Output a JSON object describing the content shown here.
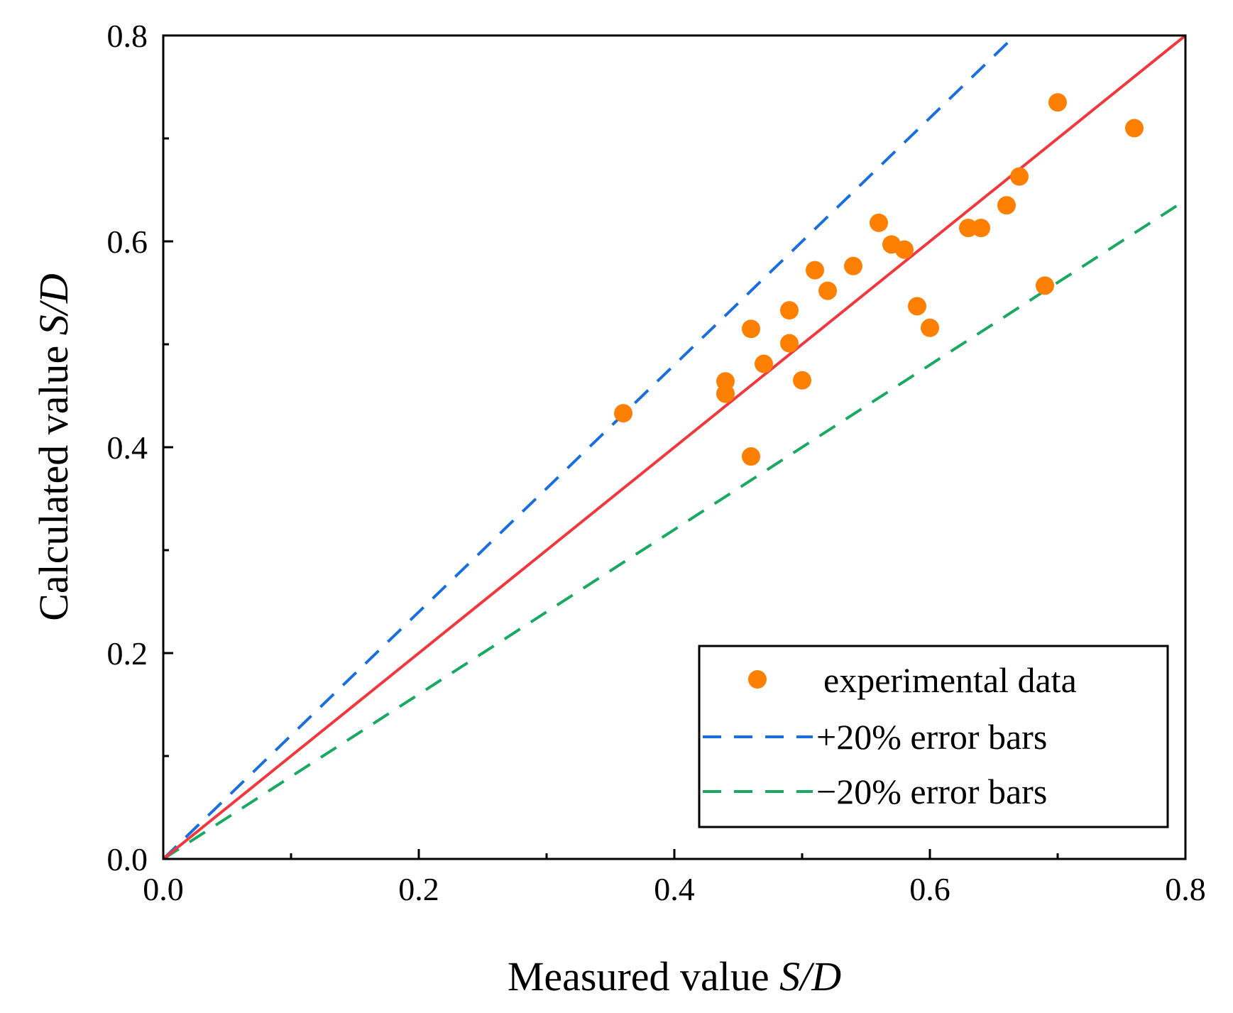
{
  "chart_data": {
    "type": "scatter",
    "title": "",
    "xlabel": {
      "prefix": "Measured value ",
      "var": "S/D"
    },
    "ylabel": {
      "prefix": "Calculated value ",
      "var": "S/D"
    },
    "xlim": [
      0,
      0.8
    ],
    "ylim": [
      0,
      0.8
    ],
    "major_ticks": [
      0.0,
      0.2,
      0.4,
      0.6,
      0.8
    ],
    "tick_labels": [
      "0.0",
      "0.2",
      "0.4",
      "0.6",
      "0.8"
    ],
    "minor_ticks": [
      0.1,
      0.3,
      0.5,
      0.7
    ],
    "grid": false,
    "legend_position": "bottom-right",
    "series": [
      {
        "name": "experimental data",
        "kind": "scatter",
        "color": "#ff8000",
        "points": [
          [
            0.36,
            0.433
          ],
          [
            0.44,
            0.464
          ],
          [
            0.44,
            0.452
          ],
          [
            0.46,
            0.515
          ],
          [
            0.46,
            0.391
          ],
          [
            0.47,
            0.481
          ],
          [
            0.49,
            0.533
          ],
          [
            0.49,
            0.501
          ],
          [
            0.5,
            0.465
          ],
          [
            0.51,
            0.572
          ],
          [
            0.52,
            0.552
          ],
          [
            0.54,
            0.576
          ],
          [
            0.56,
            0.618
          ],
          [
            0.57,
            0.597
          ],
          [
            0.58,
            0.592
          ],
          [
            0.59,
            0.537
          ],
          [
            0.6,
            0.516
          ],
          [
            0.63,
            0.613
          ],
          [
            0.64,
            0.613
          ],
          [
            0.66,
            0.635
          ],
          [
            0.67,
            0.663
          ],
          [
            0.69,
            0.557
          ],
          [
            0.7,
            0.735
          ],
          [
            0.76,
            0.71
          ]
        ]
      },
      {
        "name": "+20% error bars",
        "kind": "line",
        "style": "dashed",
        "color": "#1a6fdc",
        "x": [
          0.0,
          0.6667
        ],
        "y": [
          0.0,
          0.8
        ]
      },
      {
        "name": "−20% error bars",
        "kind": "line",
        "style": "dashed",
        "color": "#1aa862",
        "x": [
          0.0,
          0.8
        ],
        "y": [
          0.0,
          0.64
        ]
      },
      {
        "name": "",
        "kind": "line",
        "style": "solid",
        "color": "#f0393e",
        "x": [
          0.0,
          0.8
        ],
        "y": [
          0.0,
          0.8
        ]
      }
    ],
    "legend_entries": [
      "experimental data",
      "+20% error bars",
      "−20% error bars"
    ]
  }
}
